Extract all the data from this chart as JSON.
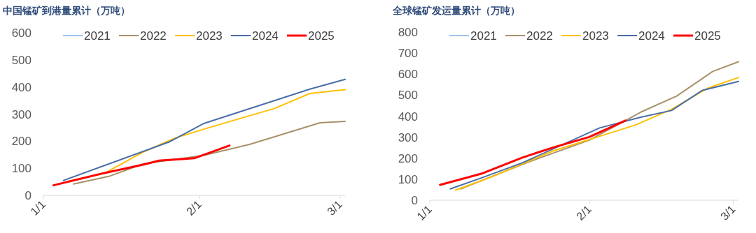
{
  "chart_data": [
    {
      "type": "line",
      "title": "中国锰矿到港量累计（万吨）",
      "legend": "top",
      "grid": false,
      "xlim": [
        "--01-01",
        "--03-02"
      ],
      "xticks": [
        {
          "value": "--01-01",
          "label": "1/1"
        },
        {
          "value": "--02-01",
          "label": "2/1"
        },
        {
          "value": "--03-01",
          "label": "3/1"
        }
      ],
      "ylim": [
        0,
        600
      ],
      "yticks": [
        0,
        100,
        200,
        300,
        400,
        500,
        600
      ],
      "series": [
        {
          "name": "2021",
          "color": "#9dc3e6"
        },
        {
          "name": "2022",
          "color": "#a8916a",
          "x": [
            "--01-07",
            "--01-14",
            "--01-21",
            "--01-27",
            "--02-02",
            "--02-11",
            "--02-17",
            "--02-25",
            "--03-02"
          ],
          "values": [
            42,
            70,
            117,
            132,
            148,
            188,
            222,
            268,
            273
          ]
        },
        {
          "name": "2023",
          "color": "#ffc000",
          "x": [
            "--01-06",
            "--01-13",
            "--01-21",
            "--01-27",
            "--02-02",
            "--02-16",
            "--02-23",
            "--03-02"
          ],
          "values": [
            53,
            80,
            161,
            210,
            245,
            321,
            376,
            390
          ]
        },
        {
          "name": "2024",
          "color": "#4a6ea8",
          "x": [
            "--01-05",
            "--01-26",
            "--02-02",
            "--02-23",
            "--03-02"
          ],
          "values": [
            55,
            197,
            266,
            392,
            428
          ]
        },
        {
          "name": "2025",
          "color": "#ff0000",
          "x": [
            "--01-03",
            "--01-13",
            "--01-21",
            "--01-24",
            "--01-31",
            "--02-07"
          ],
          "values": [
            37,
            82,
            114,
            128,
            137,
            184
          ]
        }
      ]
    },
    {
      "type": "line",
      "title": "全球锰矿发运量累计（万吨）",
      "legend": "top",
      "grid": false,
      "xlim": [
        "--01-01",
        "--03-02"
      ],
      "xticks": [
        {
          "value": "--01-01",
          "label": "1/1"
        },
        {
          "value": "--02-01",
          "label": "2/1"
        },
        {
          "value": "--03-01",
          "label": "3/1"
        }
      ],
      "ylim": [
        0,
        800
      ],
      "yticks": [
        0,
        100,
        200,
        300,
        400,
        500,
        600,
        700,
        800
      ],
      "series": [
        {
          "name": "2021",
          "color": "#9dc3e6"
        },
        {
          "name": "2022",
          "color": "#a8916a",
          "x": [
            "--01-07",
            "--01-20",
            "--02-01",
            "--02-11",
            "--02-18",
            "--02-25",
            "--03-02"
          ],
          "values": [
            54,
            180,
            286,
            419,
            496,
            613,
            659
          ]
        },
        {
          "name": "2023",
          "color": "#ffc000",
          "x": [
            "--01-06",
            "--01-13",
            "--01-25",
            "--02-03",
            "--02-10",
            "--02-17",
            "--02-24",
            "--03-02"
          ],
          "values": [
            48,
            111,
            235,
            304,
            358,
            433,
            533,
            584
          ]
        },
        {
          "name": "2024",
          "color": "#4a6ea8",
          "x": [
            "--01-05",
            "--01-11",
            "--01-19",
            "--02-03",
            "--02-11",
            "--02-17",
            "--02-23",
            "--03-02"
          ],
          "values": [
            54,
            106,
            178,
            344,
            395,
            427,
            523,
            565
          ]
        },
        {
          "name": "2025",
          "color": "#ff0000",
          "x": [
            "--01-03",
            "--01-11",
            "--01-19",
            "--01-25",
            "--02-01",
            "--02-08"
          ],
          "values": [
            73,
            126,
            203,
            251,
            301,
            379
          ]
        }
      ]
    }
  ]
}
